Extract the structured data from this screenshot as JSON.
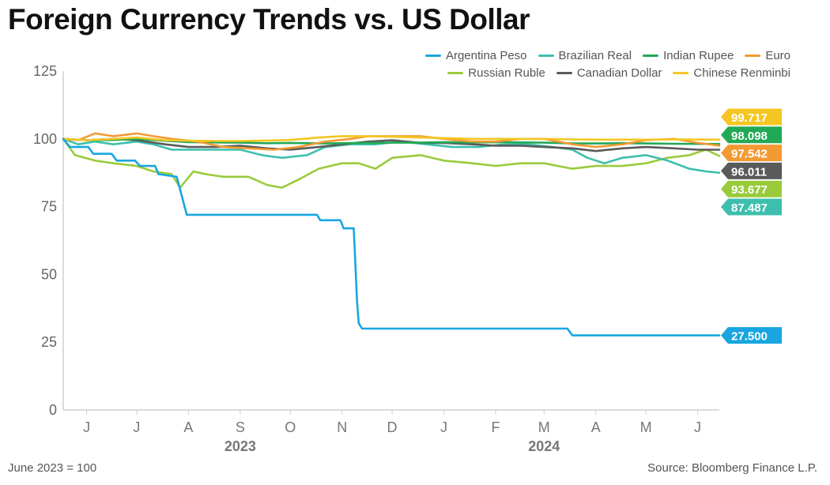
{
  "title": "Foreign Currency Trends vs. US Dollar",
  "footnote": "June 2023 = 100",
  "source": "Source: Bloomberg Finance L.P.",
  "chart_data": {
    "type": "line",
    "ylim": [
      0,
      125
    ],
    "yticks": [
      0,
      25,
      50,
      75,
      100,
      125
    ],
    "x_start": "2023-06-01",
    "x_end": "2024-06-28",
    "month_ticks": [
      {
        "label": "J",
        "date": "2023-06-15"
      },
      {
        "label": "J",
        "date": "2023-07-15"
      },
      {
        "label": "A",
        "date": "2023-08-15"
      },
      {
        "label": "S",
        "date": "2023-09-15"
      },
      {
        "label": "O",
        "date": "2023-10-15"
      },
      {
        "label": "N",
        "date": "2023-11-15"
      },
      {
        "label": "D",
        "date": "2023-12-15"
      },
      {
        "label": "J",
        "date": "2024-01-15"
      },
      {
        "label": "F",
        "date": "2024-02-15"
      },
      {
        "label": "M",
        "date": "2024-03-15"
      },
      {
        "label": "A",
        "date": "2024-04-15"
      },
      {
        "label": "M",
        "date": "2024-05-15"
      },
      {
        "label": "J",
        "date": "2024-06-15"
      }
    ],
    "year_labels": [
      {
        "label": "2023",
        "date": "2023-09-15"
      },
      {
        "label": "2024",
        "date": "2024-03-15"
      }
    ],
    "legend_rows": [
      [
        "Argentina Peso",
        "Brazilian Real",
        "Indian Rupee",
        "Euro"
      ],
      [
        "Russian Ruble",
        "Canadian Dollar",
        "Chinese Renminbi"
      ]
    ],
    "series": [
      {
        "name": "Argentina Peso",
        "color": "#19a6e0",
        "end_label": "27.500",
        "points": [
          [
            "2023-06-01",
            100
          ],
          [
            "2023-06-05",
            97
          ],
          [
            "2023-06-16",
            97
          ],
          [
            "2023-06-19",
            94.5
          ],
          [
            "2023-06-30",
            94.5
          ],
          [
            "2023-07-03",
            92
          ],
          [
            "2023-07-14",
            92
          ],
          [
            "2023-07-17",
            90
          ],
          [
            "2023-07-26",
            90
          ],
          [
            "2023-07-28",
            87
          ],
          [
            "2023-08-08",
            86
          ],
          [
            "2023-08-14",
            72
          ],
          [
            "2023-09-05",
            72
          ],
          [
            "2023-09-20",
            72
          ],
          [
            "2023-10-05",
            72
          ],
          [
            "2023-10-20",
            72
          ],
          [
            "2023-10-31",
            72
          ],
          [
            "2023-11-02",
            70
          ],
          [
            "2023-11-14",
            70
          ],
          [
            "2023-11-16",
            67
          ],
          [
            "2023-11-22",
            67
          ],
          [
            "2023-11-24",
            40
          ],
          [
            "2023-11-25",
            32
          ],
          [
            "2023-11-27",
            30
          ],
          [
            "2023-12-10",
            30
          ],
          [
            "2024-01-01",
            30
          ],
          [
            "2024-02-01",
            30
          ],
          [
            "2024-03-01",
            30
          ],
          [
            "2024-03-29",
            30
          ],
          [
            "2024-04-01",
            27.5
          ],
          [
            "2024-04-20",
            27.5
          ],
          [
            "2024-05-20",
            27.5
          ],
          [
            "2024-06-28",
            27.5
          ]
        ]
      },
      {
        "name": "Brazilian Real",
        "color": "#3ebfad",
        "end_label": "87.487",
        "points": [
          [
            "2023-06-01",
            100
          ],
          [
            "2023-06-10",
            98
          ],
          [
            "2023-06-20",
            99
          ],
          [
            "2023-07-01",
            98
          ],
          [
            "2023-07-15",
            99
          ],
          [
            "2023-07-25",
            98
          ],
          [
            "2023-08-05",
            96
          ],
          [
            "2023-08-20",
            96
          ],
          [
            "2023-09-01",
            96
          ],
          [
            "2023-09-15",
            96
          ],
          [
            "2023-09-28",
            94
          ],
          [
            "2023-10-10",
            93
          ],
          [
            "2023-10-25",
            94
          ],
          [
            "2023-11-05",
            97
          ],
          [
            "2023-11-20",
            98
          ],
          [
            "2023-12-05",
            98
          ],
          [
            "2023-12-20",
            99
          ],
          [
            "2024-01-05",
            98
          ],
          [
            "2024-01-20",
            97
          ],
          [
            "2024-02-05",
            97
          ],
          [
            "2024-02-20",
            98
          ],
          [
            "2024-03-05",
            98
          ],
          [
            "2024-03-20",
            97
          ],
          [
            "2024-04-01",
            96
          ],
          [
            "2024-04-10",
            93
          ],
          [
            "2024-04-20",
            91
          ],
          [
            "2024-05-01",
            93
          ],
          [
            "2024-05-15",
            94
          ],
          [
            "2024-05-28",
            92
          ],
          [
            "2024-06-10",
            89
          ],
          [
            "2024-06-20",
            88
          ],
          [
            "2024-06-28",
            87.5
          ]
        ]
      },
      {
        "name": "Indian Rupee",
        "color": "#22a956",
        "end_label": "98.098",
        "points": [
          [
            "2023-06-01",
            100
          ],
          [
            "2023-06-15",
            99.5
          ],
          [
            "2023-07-01",
            99.6
          ],
          [
            "2023-07-15",
            100
          ],
          [
            "2023-08-01",
            99.3
          ],
          [
            "2023-08-15",
            98.8
          ],
          [
            "2023-09-01",
            98.7
          ],
          [
            "2023-09-15",
            98.6
          ],
          [
            "2023-10-01",
            98.4
          ],
          [
            "2023-10-15",
            98.5
          ],
          [
            "2023-11-01",
            98.3
          ],
          [
            "2023-11-15",
            98.4
          ],
          [
            "2023-12-01",
            98.5
          ],
          [
            "2023-12-15",
            98.6
          ],
          [
            "2024-01-01",
            98.6
          ],
          [
            "2024-01-15",
            98.8
          ],
          [
            "2024-02-01",
            98.7
          ],
          [
            "2024-02-15",
            98.8
          ],
          [
            "2024-03-01",
            98.7
          ],
          [
            "2024-03-15",
            98.6
          ],
          [
            "2024-04-01",
            98.3
          ],
          [
            "2024-04-15",
            98.3
          ],
          [
            "2024-05-01",
            98.4
          ],
          [
            "2024-05-15",
            98.3
          ],
          [
            "2024-06-01",
            98.2
          ],
          [
            "2024-06-28",
            98.1
          ]
        ]
      },
      {
        "name": "Euro",
        "color": "#f39a32",
        "end_label": "97.542",
        "points": [
          [
            "2023-06-01",
            100
          ],
          [
            "2023-06-10",
            99.5
          ],
          [
            "2023-06-20",
            102
          ],
          [
            "2023-07-01",
            101
          ],
          [
            "2023-07-15",
            102
          ],
          [
            "2023-07-25",
            101
          ],
          [
            "2023-08-05",
            100
          ],
          [
            "2023-08-20",
            99
          ],
          [
            "2023-09-05",
            97
          ],
          [
            "2023-09-20",
            96.5
          ],
          [
            "2023-10-05",
            96
          ],
          [
            "2023-10-20",
            97
          ],
          [
            "2023-11-05",
            99
          ],
          [
            "2023-11-20",
            100
          ],
          [
            "2023-12-01",
            101
          ],
          [
            "2023-12-15",
            101
          ],
          [
            "2024-01-01",
            101
          ],
          [
            "2024-01-15",
            100
          ],
          [
            "2024-02-01",
            99
          ],
          [
            "2024-02-15",
            99
          ],
          [
            "2024-03-01",
            100
          ],
          [
            "2024-03-15",
            100
          ],
          [
            "2024-04-01",
            98
          ],
          [
            "2024-04-15",
            97
          ],
          [
            "2024-05-01",
            98
          ],
          [
            "2024-05-15",
            99.5
          ],
          [
            "2024-06-01",
            100
          ],
          [
            "2024-06-15",
            98.5
          ],
          [
            "2024-06-28",
            97.5
          ]
        ]
      },
      {
        "name": "Russian Ruble",
        "color": "#9acb3c",
        "end_label": "93.677",
        "points": [
          [
            "2023-06-01",
            100
          ],
          [
            "2023-06-08",
            94
          ],
          [
            "2023-06-20",
            92
          ],
          [
            "2023-07-01",
            91
          ],
          [
            "2023-07-15",
            90
          ],
          [
            "2023-07-25",
            88
          ],
          [
            "2023-08-05",
            87
          ],
          [
            "2023-08-10",
            82
          ],
          [
            "2023-08-18",
            88
          ],
          [
            "2023-08-25",
            87
          ],
          [
            "2023-09-05",
            86
          ],
          [
            "2023-09-20",
            86
          ],
          [
            "2023-10-01",
            83
          ],
          [
            "2023-10-10",
            82
          ],
          [
            "2023-10-20",
            85
          ],
          [
            "2023-11-01",
            89
          ],
          [
            "2023-11-15",
            91
          ],
          [
            "2023-11-25",
            91
          ],
          [
            "2023-12-05",
            89
          ],
          [
            "2023-12-15",
            93
          ],
          [
            "2024-01-01",
            94
          ],
          [
            "2024-01-15",
            92
          ],
          [
            "2024-02-01",
            91
          ],
          [
            "2024-02-15",
            90
          ],
          [
            "2024-03-01",
            91
          ],
          [
            "2024-03-15",
            91
          ],
          [
            "2024-04-01",
            89
          ],
          [
            "2024-04-15",
            90
          ],
          [
            "2024-05-01",
            90
          ],
          [
            "2024-05-15",
            91
          ],
          [
            "2024-05-28",
            93
          ],
          [
            "2024-06-10",
            94
          ],
          [
            "2024-06-20",
            96
          ],
          [
            "2024-06-28",
            93.7
          ]
        ]
      },
      {
        "name": "Canadian Dollar",
        "color": "#5a5a5a",
        "end_label": "96.011",
        "points": [
          [
            "2023-06-01",
            100
          ],
          [
            "2023-06-15",
            99.5
          ],
          [
            "2023-07-01",
            100
          ],
          [
            "2023-07-15",
            99.5
          ],
          [
            "2023-08-01",
            98
          ],
          [
            "2023-08-15",
            97
          ],
          [
            "2023-09-01",
            97
          ],
          [
            "2023-09-15",
            97.5
          ],
          [
            "2023-10-01",
            96.5
          ],
          [
            "2023-10-15",
            96
          ],
          [
            "2023-11-01",
            97
          ],
          [
            "2023-11-15",
            98
          ],
          [
            "2023-12-01",
            99
          ],
          [
            "2023-12-15",
            99.5
          ],
          [
            "2024-01-01",
            98.5
          ],
          [
            "2024-01-15",
            98.5
          ],
          [
            "2024-02-01",
            98
          ],
          [
            "2024-02-15",
            97.5
          ],
          [
            "2024-03-01",
            97.5
          ],
          [
            "2024-03-15",
            97
          ],
          [
            "2024-04-01",
            96.5
          ],
          [
            "2024-04-15",
            95.5
          ],
          [
            "2024-05-01",
            96.5
          ],
          [
            "2024-05-15",
            97
          ],
          [
            "2024-06-01",
            96.5
          ],
          [
            "2024-06-15",
            96
          ],
          [
            "2024-06-28",
            96
          ]
        ]
      },
      {
        "name": "Chinese Renminbi",
        "color": "#f5c623",
        "end_label": "99.717",
        "points": [
          [
            "2023-06-01",
            100
          ],
          [
            "2023-06-15",
            99.5
          ],
          [
            "2023-07-01",
            100
          ],
          [
            "2023-07-15",
            100.5
          ],
          [
            "2023-08-01",
            99.5
          ],
          [
            "2023-08-15",
            99.3
          ],
          [
            "2023-09-01",
            99.2
          ],
          [
            "2023-09-15",
            99.2
          ],
          [
            "2023-10-01",
            99.4
          ],
          [
            "2023-10-15",
            99.6
          ],
          [
            "2023-11-01",
            100.5
          ],
          [
            "2023-11-15",
            101
          ],
          [
            "2023-12-01",
            101
          ],
          [
            "2023-12-15",
            100.8
          ],
          [
            "2024-01-01",
            100.5
          ],
          [
            "2024-01-15",
            100.3
          ],
          [
            "2024-02-01",
            100
          ],
          [
            "2024-02-15",
            100
          ],
          [
            "2024-03-01",
            100
          ],
          [
            "2024-03-15",
            100
          ],
          [
            "2024-04-01",
            99.8
          ],
          [
            "2024-04-15",
            99.7
          ],
          [
            "2024-05-01",
            99.7
          ],
          [
            "2024-05-15",
            99.7
          ],
          [
            "2024-06-01",
            99.8
          ],
          [
            "2024-06-28",
            99.7
          ]
        ]
      }
    ],
    "end_label_order": [
      "Chinese Renminbi",
      "Indian Rupee",
      "Euro",
      "Canadian Dollar",
      "Russian Ruble",
      "Brazilian Real"
    ]
  }
}
